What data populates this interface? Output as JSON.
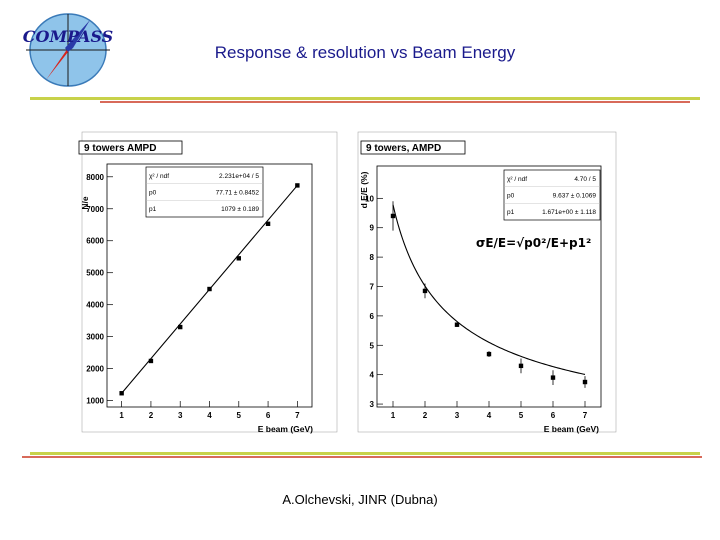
{
  "slide": {
    "title": "Response & resolution vs Beam Energy",
    "footer": "A.Olchevski, JINR (Dubna)",
    "logo_text": "COMPASS"
  },
  "colors": {
    "title": "#1a1a8c",
    "rule_green": "#c8d24a",
    "rule_red": "#d86a5a"
  },
  "chart_data": [
    {
      "type": "scatter",
      "header": "9 towers  AMPD",
      "xlabel": "E beam (GeV)",
      "ylabel": "N/e",
      "xlim": [
        0.5,
        7.5
      ],
      "ylim": [
        800,
        8400
      ],
      "xticks": [
        1,
        2,
        3,
        4,
        5,
        6,
        7
      ],
      "yticks": [
        1000,
        2000,
        3000,
        4000,
        5000,
        6000,
        7000,
        8000
      ],
      "fit": "linear",
      "stats": [
        {
          "label": "χ² / ndf",
          "value": "2.231e+04 / 5"
        },
        {
          "label": "p0",
          "value": "77.71 ± 0.8452"
        },
        {
          "label": "p1",
          "value": "1079 ± 0.189"
        }
      ],
      "series": [
        {
          "x": [
            1,
            2,
            3,
            4,
            5,
            6,
            7
          ],
          "y": [
            1230,
            2240,
            3300,
            4490,
            5450,
            6530,
            7730
          ]
        }
      ]
    },
    {
      "type": "scatter",
      "header": "9 towers,  AMPD",
      "xlabel": "E beam (GeV)",
      "ylabel": "d E/E (%)",
      "xlim": [
        0.5,
        7.5
      ],
      "ylim": [
        2.9,
        11.1
      ],
      "xticks": [
        1,
        2,
        3,
        4,
        5,
        6,
        7
      ],
      "yticks": [
        3,
        4,
        5,
        6,
        7,
        8,
        9,
        10
      ],
      "fit": "σE/E = sqrt(p0²/E + p1²)",
      "stats": [
        {
          "label": "χ² / ndf",
          "value": "4.70 / 5"
        },
        {
          "label": "p0",
          "value": "9.637 ± 0.1069"
        },
        {
          "label": "p1",
          "value": "1.671e+00 ± 1.118"
        }
      ],
      "annotation": "σE/E=√p0²/E+p1²",
      "series": [
        {
          "x": [
            1,
            2,
            3,
            4,
            5,
            6,
            7
          ],
          "y": [
            9.4,
            6.85,
            5.7,
            4.7,
            4.3,
            3.9,
            3.75
          ],
          "yerr": [
            0.5,
            0.25,
            0.08,
            0.1,
            0.25,
            0.25,
            0.2
          ]
        }
      ]
    }
  ]
}
